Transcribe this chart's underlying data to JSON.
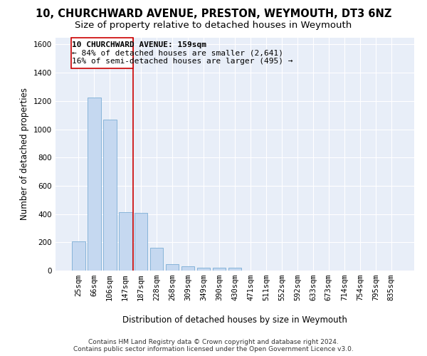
{
  "title_line1": "10, CHURCHWARD AVENUE, PRESTON, WEYMOUTH, DT3 6NZ",
  "title_line2": "Size of property relative to detached houses in Weymouth",
  "xlabel": "Distribution of detached houses by size in Weymouth",
  "ylabel": "Number of detached properties",
  "bar_color": "#c5d8f0",
  "bar_edge_color": "#7badd4",
  "categories": [
    "25sqm",
    "66sqm",
    "106sqm",
    "147sqm",
    "187sqm",
    "228sqm",
    "268sqm",
    "309sqm",
    "349sqm",
    "390sqm",
    "430sqm",
    "471sqm",
    "511sqm",
    "552sqm",
    "592sqm",
    "633sqm",
    "673sqm",
    "714sqm",
    "754sqm",
    "795sqm",
    "835sqm"
  ],
  "values": [
    205,
    1225,
    1070,
    415,
    410,
    160,
    45,
    28,
    22,
    18,
    18,
    0,
    0,
    0,
    0,
    0,
    0,
    0,
    0,
    0,
    0
  ],
  "ylim": [
    0,
    1650
  ],
  "yticks": [
    0,
    200,
    400,
    600,
    800,
    1000,
    1200,
    1400,
    1600
  ],
  "vline_x": 3.5,
  "vline_color": "#cc0000",
  "annotation_line1": "10 CHURCHWARD AVENUE: 159sqm",
  "annotation_line2": "← 84% of detached houses are smaller (2,641)",
  "annotation_line3": "16% of semi-detached houses are larger (495) →",
  "background_color": "#ffffff",
  "plot_bg_color": "#e8eef8",
  "grid_color": "#ffffff",
  "footnote": "Contains HM Land Registry data © Crown copyright and database right 2024.\nContains public sector information licensed under the Open Government Licence v3.0.",
  "title_fontsize": 10.5,
  "subtitle_fontsize": 9.5,
  "axis_label_fontsize": 8.5,
  "tick_fontsize": 7.5,
  "annotation_fontsize": 8,
  "footnote_fontsize": 6.5
}
